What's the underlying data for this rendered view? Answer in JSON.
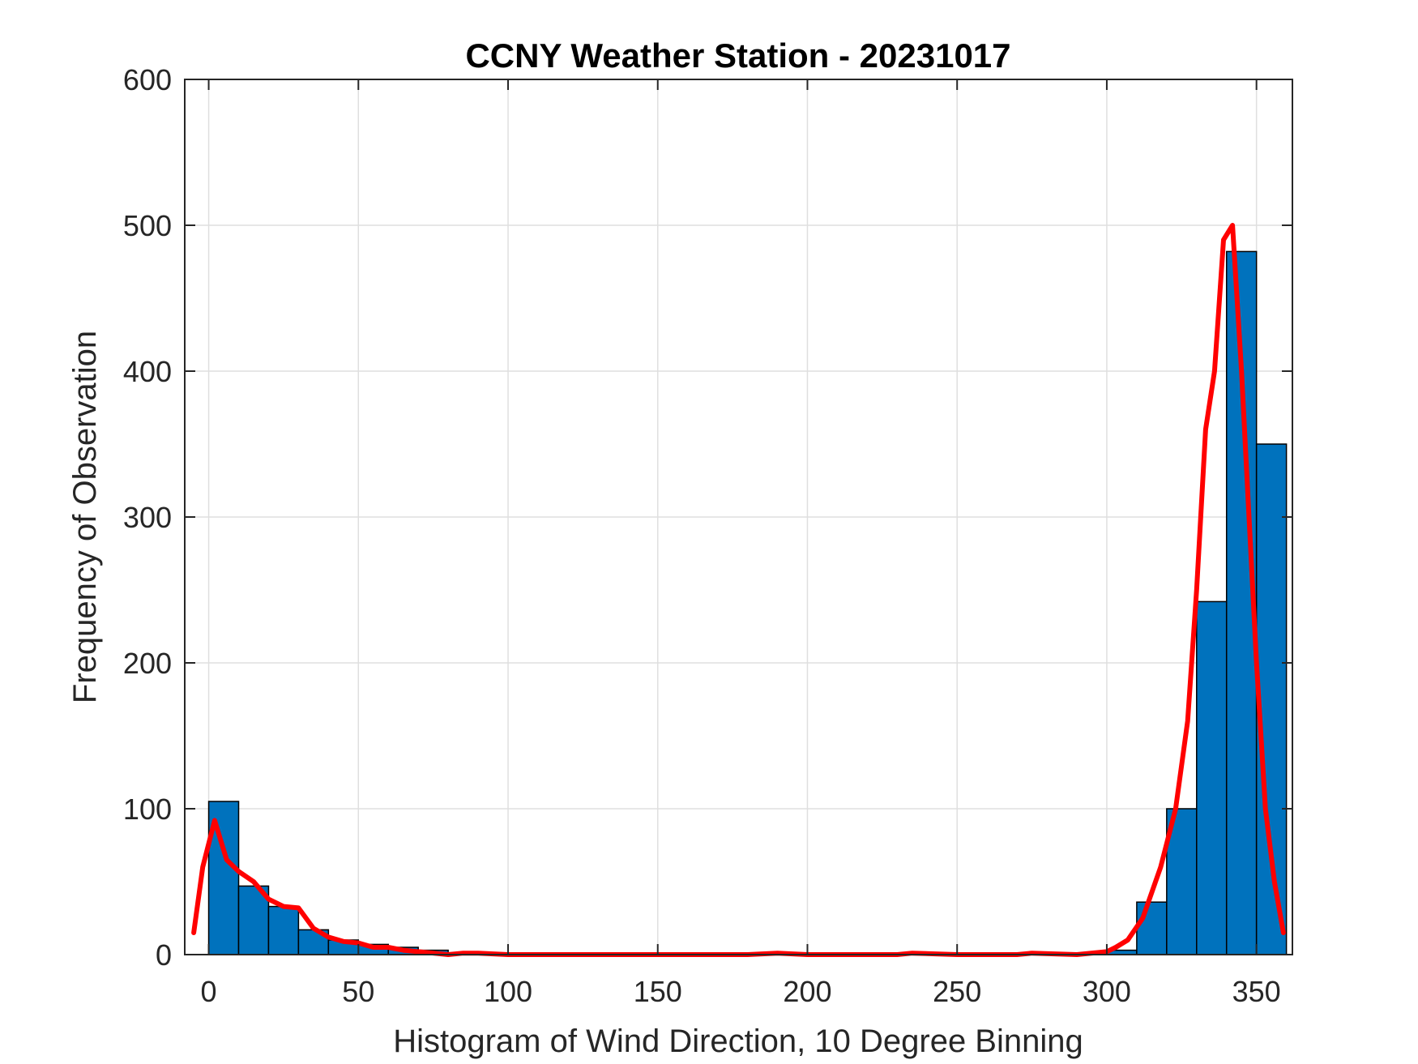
{
  "chart_data": {
    "type": "bar",
    "title": "CCNY Weather Station - 20231017",
    "xlabel": "Histogram of Wind Direction, 10 Degree Binning",
    "ylabel": "Frequency of Observation",
    "xlim": [
      -8,
      362
    ],
    "ylim": [
      0,
      600
    ],
    "grid": true,
    "xticks": [
      0,
      50,
      100,
      150,
      200,
      250,
      300,
      350
    ],
    "xtick_labels": [
      "0",
      "50",
      "100",
      "150",
      "200",
      "250",
      "300",
      "350"
    ],
    "yticks": [
      0,
      100,
      200,
      300,
      400,
      500,
      600
    ],
    "ytick_labels": [
      "0",
      "100",
      "200",
      "300",
      "400",
      "500",
      "600"
    ],
    "bin_width": 10,
    "bins": [
      {
        "start": 0,
        "count": 105
      },
      {
        "start": 10,
        "count": 47
      },
      {
        "start": 20,
        "count": 33
      },
      {
        "start": 30,
        "count": 17
      },
      {
        "start": 40,
        "count": 10
      },
      {
        "start": 50,
        "count": 7
      },
      {
        "start": 60,
        "count": 5
      },
      {
        "start": 70,
        "count": 3
      },
      {
        "start": 80,
        "count": 0
      },
      {
        "start": 90,
        "count": 0
      },
      {
        "start": 100,
        "count": 0
      },
      {
        "start": 110,
        "count": 0
      },
      {
        "start": 120,
        "count": 0
      },
      {
        "start": 130,
        "count": 0
      },
      {
        "start": 140,
        "count": 0
      },
      {
        "start": 150,
        "count": 0
      },
      {
        "start": 160,
        "count": 0
      },
      {
        "start": 170,
        "count": 0
      },
      {
        "start": 180,
        "count": 0
      },
      {
        "start": 190,
        "count": 0
      },
      {
        "start": 200,
        "count": 0
      },
      {
        "start": 210,
        "count": 0
      },
      {
        "start": 220,
        "count": 0
      },
      {
        "start": 230,
        "count": 0
      },
      {
        "start": 240,
        "count": 0
      },
      {
        "start": 250,
        "count": 0
      },
      {
        "start": 260,
        "count": 0
      },
      {
        "start": 270,
        "count": 0
      },
      {
        "start": 280,
        "count": 0
      },
      {
        "start": 290,
        "count": 0
      },
      {
        "start": 300,
        "count": 3
      },
      {
        "start": 310,
        "count": 36
      },
      {
        "start": 320,
        "count": 100
      },
      {
        "start": 330,
        "count": 242
      },
      {
        "start": 340,
        "count": 482
      },
      {
        "start": 350,
        "count": 350
      }
    ],
    "bar_color": "#0072BD",
    "bar_edge_color": "#000000",
    "curve": {
      "color": "#FF0000",
      "x": [
        -5,
        -2,
        2,
        6,
        10,
        15,
        20,
        25,
        30,
        35,
        40,
        45,
        50,
        55,
        60,
        65,
        70,
        75,
        80,
        85,
        90,
        100,
        120,
        150,
        180,
        190,
        200,
        230,
        235,
        250,
        270,
        275,
        290,
        300,
        303,
        307,
        312,
        318,
        323,
        327,
        330,
        333,
        336,
        339,
        342,
        345,
        348,
        350,
        353,
        356,
        359
      ],
      "y": [
        15,
        60,
        92,
        65,
        57,
        50,
        38,
        33,
        32,
        18,
        12,
        9,
        8,
        5,
        5,
        3,
        2,
        1,
        0,
        1,
        1,
        0,
        0,
        0,
        0,
        1,
        0,
        0,
        1,
        0,
        0,
        1,
        0,
        2,
        5,
        10,
        25,
        60,
        100,
        160,
        250,
        360,
        400,
        490,
        500,
        400,
        280,
        200,
        100,
        50,
        15
      ]
    }
  }
}
